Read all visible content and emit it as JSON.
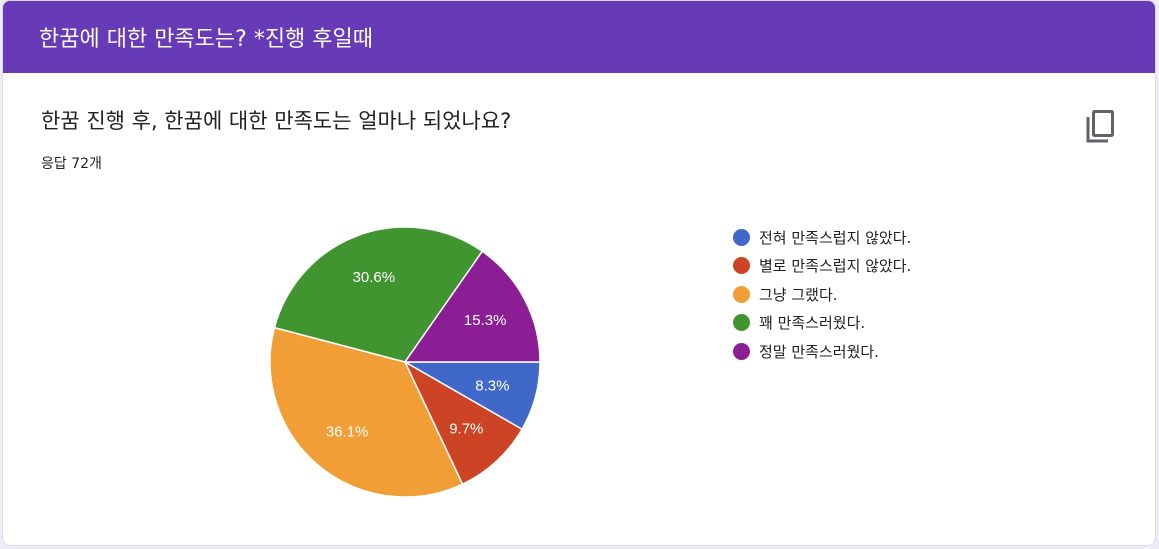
{
  "header": {
    "title": "한꿈에 대한 만족도는? *진행 후일때"
  },
  "question": {
    "title": "한꿈 진행 후, 한꿈에 대한 만족도는 얼마나 되었나요?",
    "response_count": "응답 72개"
  },
  "icons": {
    "copy": "copy-icon"
  },
  "colors": {
    "header_bg": "#673ab7",
    "slice_1": "#3f68c8",
    "slice_2": "#cc4425",
    "slice_3": "#f09e35",
    "slice_4": "#409530",
    "slice_5": "#8b1d95"
  },
  "chart_data": {
    "type": "pie",
    "total": 72,
    "slices": [
      {
        "label": "전혀 만족스럽지 않았다.",
        "value": 8.3,
        "display": "8.3%",
        "color": "#3f68c8"
      },
      {
        "label": "별로 만족스럽지 않았다.",
        "value": 9.7,
        "display": "9.7%",
        "color": "#cc4425"
      },
      {
        "label": "그냥 그랬다.",
        "value": 36.1,
        "display": "36.1%",
        "color": "#f09e35"
      },
      {
        "label": "꽤 만족스러웠다.",
        "value": 30.6,
        "display": "30.6%",
        "color": "#409530"
      },
      {
        "label": "정말 만족스러웠다.",
        "value": 15.3,
        "display": "15.3%",
        "color": "#8b1d95"
      }
    ],
    "legend_position": "right"
  }
}
